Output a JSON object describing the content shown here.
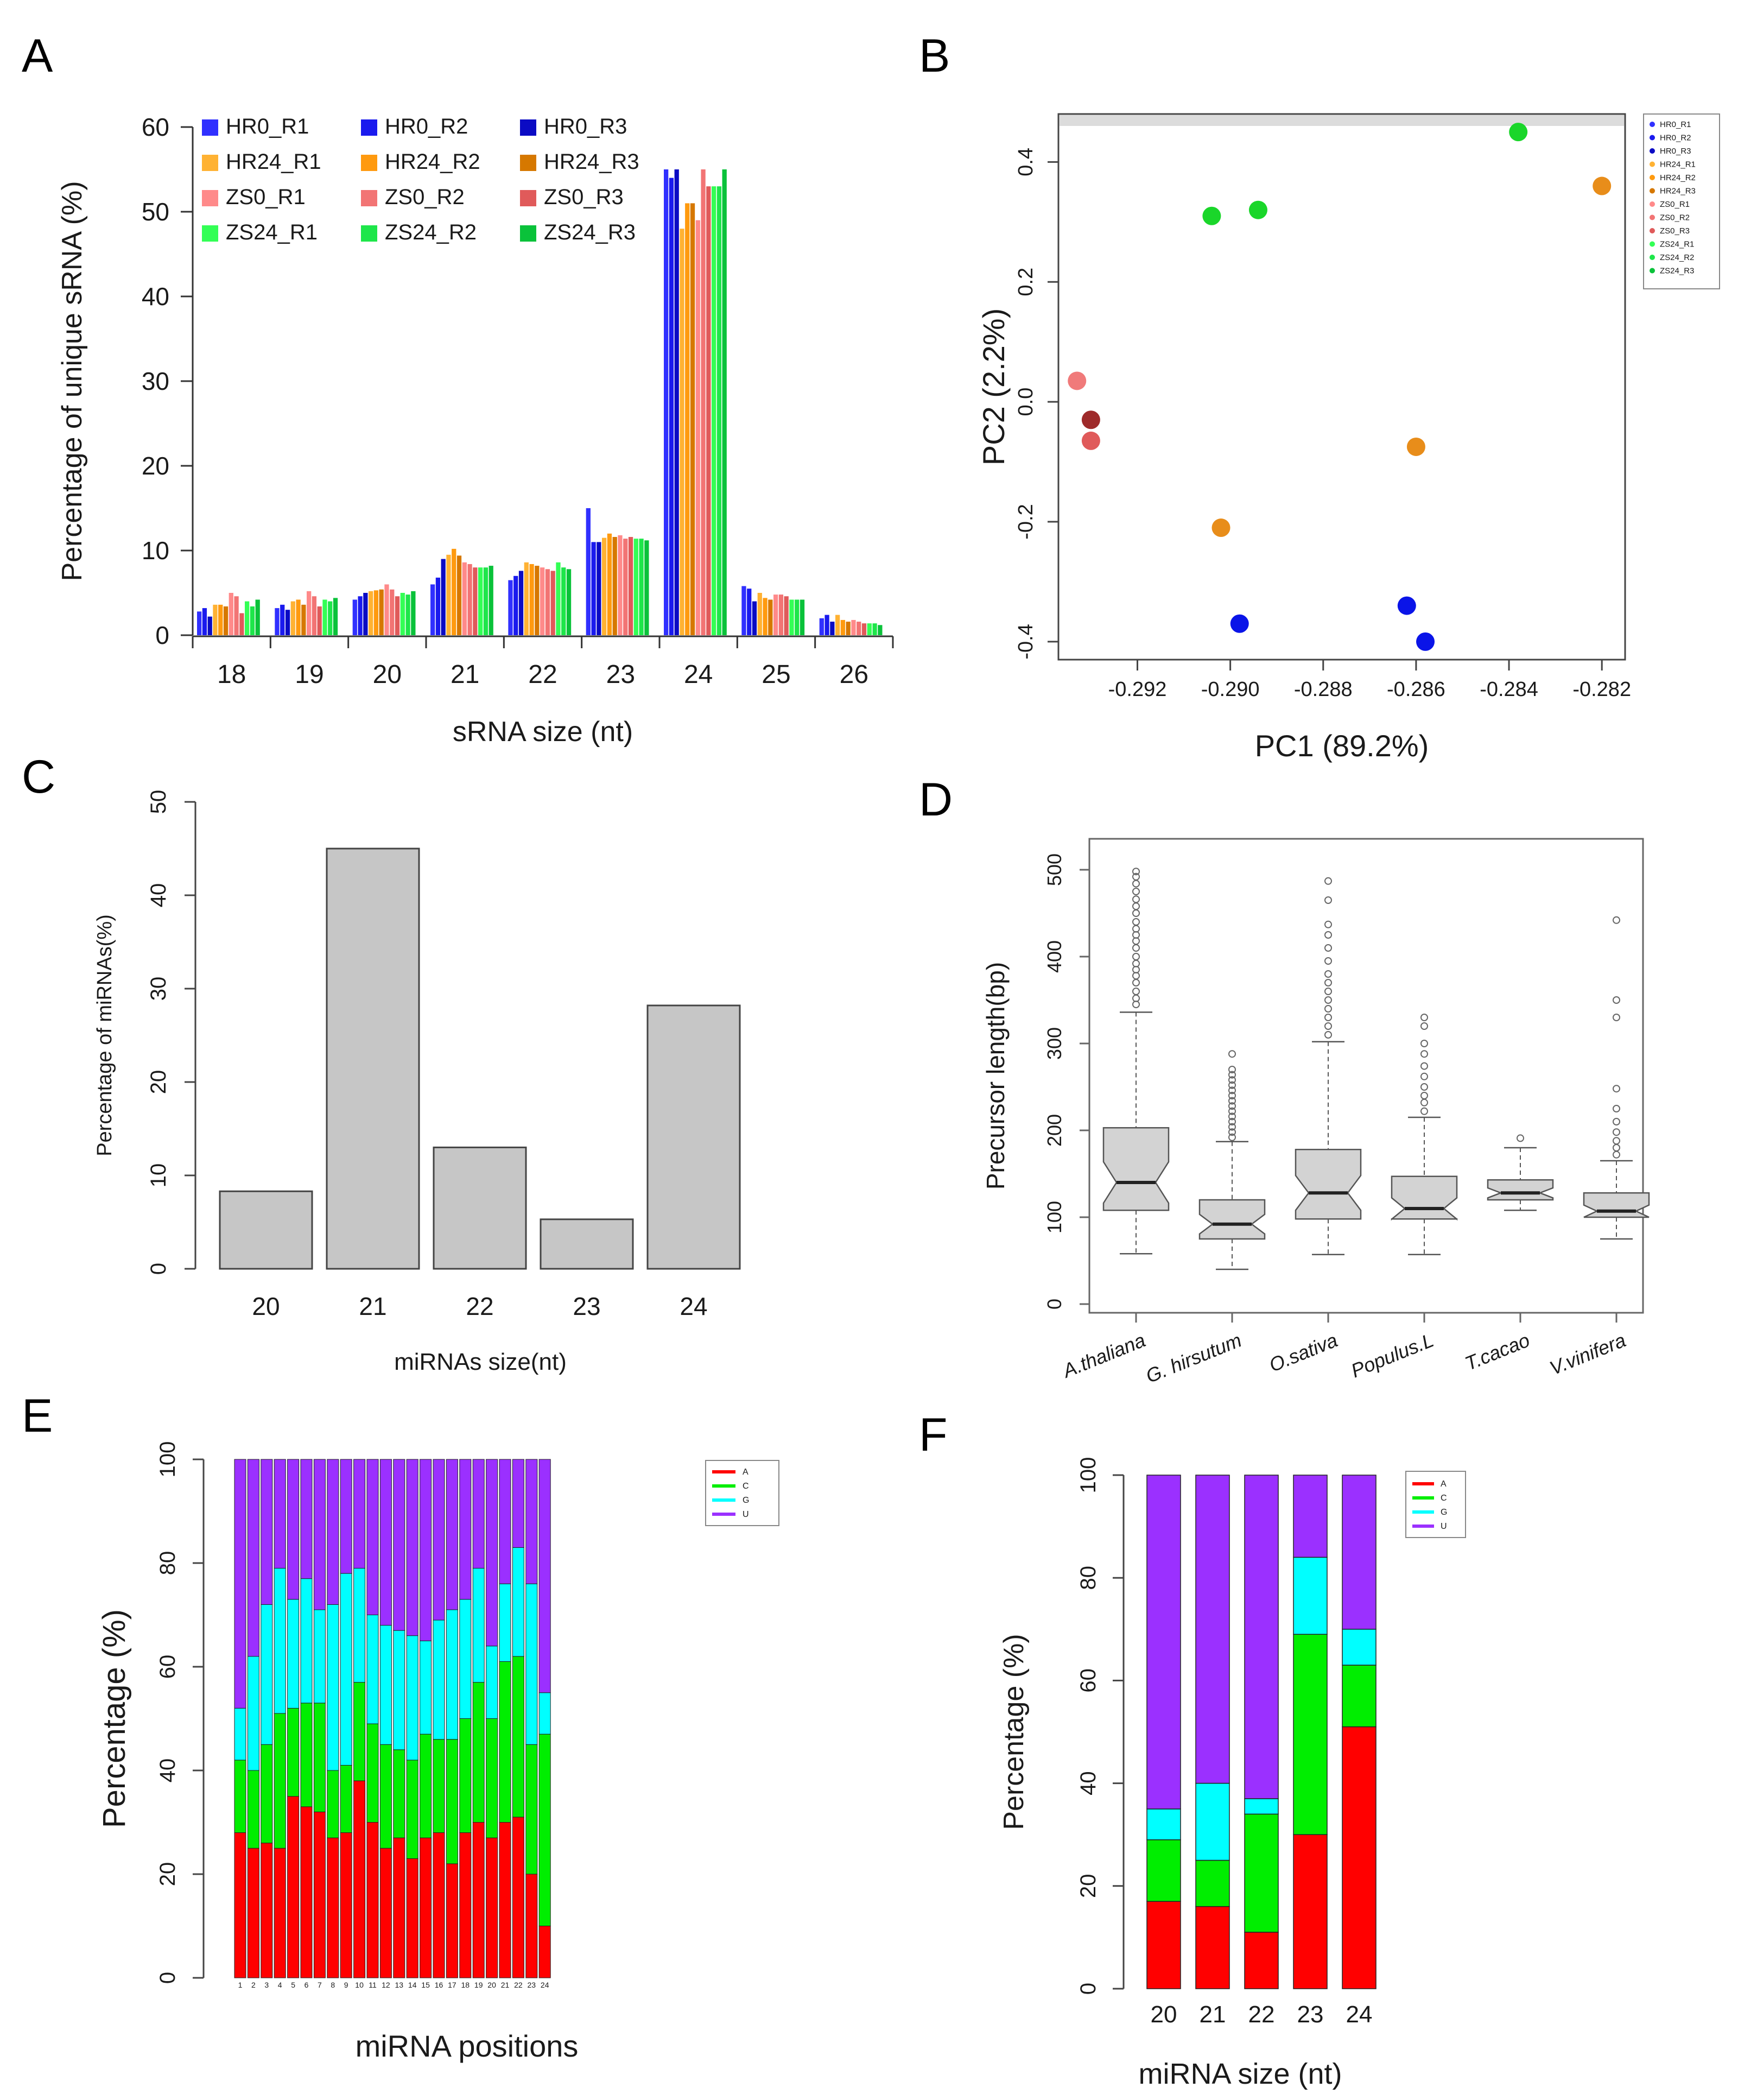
{
  "panels": {
    "A": "A",
    "B": "B",
    "C": "C",
    "D": "D",
    "E": "E",
    "F": "F"
  },
  "colors": {
    "HR0": [
      "#3030ff",
      "#1a1aee",
      "#0b0bc4"
    ],
    "HR24": [
      "#ffb233",
      "#ff9a0f",
      "#d67800"
    ],
    "ZS0": [
      "#ff8a8a",
      "#f27474",
      "#e05a5a"
    ],
    "ZS24": [
      "#33ff55",
      "#1ee64a",
      "#0ac23a"
    ],
    "gray_bar": "#c6c6c6",
    "pca": {
      "HR0": "#0a14e8",
      "HR24": "#e88d1a",
      "ZS0_light": "#f07a7a",
      "ZS0_mid": "#e05a5a",
      "ZS0_dark": "#9e2a2a",
      "ZS24": "#1ad62a"
    },
    "nt": {
      "A": "#ff0000",
      "C": "#00ee00",
      "G": "#00ffff",
      "U": "#9b30ff"
    }
  },
  "chart_data": [
    {
      "panel": "A",
      "type": "bar",
      "title": "",
      "xlabel": "sRNA size (nt)",
      "ylabel": "Percentage of unique sRNA (%)",
      "ylim": [
        0,
        60
      ],
      "yticks": [
        "0",
        "10",
        "20",
        "30",
        "40",
        "50",
        "60"
      ],
      "categories": [
        "18",
        "19",
        "20",
        "21",
        "22",
        "23",
        "24",
        "25",
        "26"
      ],
      "series": [
        {
          "name": "HR0_R1",
          "values": [
            2.8,
            3.2,
            4.2,
            6.0,
            6.5,
            15.0,
            55.0,
            5.8,
            2.0
          ]
        },
        {
          "name": "HR0_R2",
          "values": [
            3.2,
            3.6,
            4.6,
            6.8,
            7.0,
            11.0,
            54.0,
            5.5,
            2.4
          ]
        },
        {
          "name": "HR0_R3",
          "values": [
            2.2,
            3.0,
            5.0,
            9.0,
            7.6,
            11.0,
            55.0,
            4.0,
            1.6
          ]
        },
        {
          "name": "HR24_R1",
          "values": [
            3.6,
            4.0,
            5.2,
            9.5,
            8.6,
            11.5,
            48.0,
            5.0,
            2.4
          ]
        },
        {
          "name": "HR24_R2",
          "values": [
            3.6,
            4.2,
            5.3,
            10.2,
            8.4,
            12.0,
            51.0,
            4.4,
            1.8
          ]
        },
        {
          "name": "HR24_R3",
          "values": [
            3.4,
            3.6,
            5.4,
            9.4,
            8.2,
            11.6,
            51.0,
            4.2,
            1.6
          ]
        },
        {
          "name": "ZS0_R1",
          "values": [
            5.0,
            5.2,
            6.0,
            8.6,
            8.0,
            11.8,
            49.0,
            4.8,
            1.8
          ]
        },
        {
          "name": "ZS0_R2",
          "values": [
            4.6,
            4.6,
            5.4,
            8.4,
            7.8,
            11.4,
            55.0,
            4.8,
            1.6
          ]
        },
        {
          "name": "ZS0_R3",
          "values": [
            2.6,
            3.4,
            4.6,
            8.0,
            7.6,
            11.6,
            53.0,
            4.6,
            1.4
          ]
        },
        {
          "name": "ZS24_R1",
          "values": [
            4.0,
            4.2,
            5.0,
            8.0,
            8.6,
            11.4,
            53.0,
            4.2,
            1.4
          ]
        },
        {
          "name": "ZS24_R2",
          "values": [
            3.4,
            4.0,
            4.8,
            8.0,
            8.0,
            11.4,
            53.0,
            4.2,
            1.4
          ]
        },
        {
          "name": "ZS24_R3",
          "values": [
            4.2,
            4.4,
            5.2,
            8.2,
            7.8,
            11.2,
            55.0,
            4.2,
            1.2
          ]
        }
      ],
      "legend": [
        [
          "HR0_R1",
          "HR0_R2",
          "HR0_R3"
        ],
        [
          "HR24_R1",
          "HR24_R2",
          "HR24_R3"
        ],
        [
          "ZS0_R1",
          "ZS0_R2",
          "ZS0_R3"
        ],
        [
          "ZS24_R1",
          "ZS24_R2",
          "ZS24_R3"
        ]
      ]
    },
    {
      "panel": "B",
      "type": "scatter",
      "xlabel": "PC1 (89.2%)",
      "ylabel": "PC2 (2.2%)",
      "xlim": [
        -0.2937,
        -0.2815
      ],
      "ylim": [
        -0.43,
        0.48
      ],
      "xticks": [
        "-0.292",
        "-0.290",
        "-0.288",
        "-0.286",
        "-0.284",
        "-0.282"
      ],
      "xtick_values": [
        -0.292,
        -0.29,
        -0.288,
        -0.286,
        -0.284,
        -0.282
      ],
      "yticks": [
        "-0.4",
        "-0.2",
        "0.0",
        "0.2",
        "0.4"
      ],
      "ytick_values": [
        -0.4,
        -0.2,
        0.0,
        0.2,
        0.4
      ],
      "points": [
        {
          "group": "HR0",
          "x": -0.2898,
          "y": -0.37
        },
        {
          "group": "HR0",
          "x": -0.2862,
          "y": -0.34
        },
        {
          "group": "HR0",
          "x": -0.2858,
          "y": -0.4
        },
        {
          "group": "HR24",
          "x": -0.2902,
          "y": -0.21
        },
        {
          "group": "HR24",
          "x": -0.286,
          "y": -0.075
        },
        {
          "group": "HR24",
          "x": -0.282,
          "y": 0.36
        },
        {
          "group": "ZS0_light",
          "x": -0.2933,
          "y": 0.035
        },
        {
          "group": "ZS0_dark",
          "x": -0.293,
          "y": -0.03
        },
        {
          "group": "ZS0_mid",
          "x": -0.293,
          "y": -0.065
        },
        {
          "group": "ZS24",
          "x": -0.2904,
          "y": 0.31
        },
        {
          "group": "ZS24",
          "x": -0.2894,
          "y": 0.32
        },
        {
          "group": "ZS24",
          "x": -0.2838,
          "y": 0.45
        }
      ],
      "legend": [
        "HR0_R1",
        "HR0_R2",
        "HR0_R3",
        "HR24_R1",
        "HR24_R2",
        "HR24_R3",
        "ZS0_R1",
        "ZS0_R2",
        "ZS0_R3",
        "ZS24_R1",
        "ZS24_R2",
        "ZS24_R3"
      ]
    },
    {
      "panel": "C",
      "type": "bar",
      "xlabel": "miRNAs size(nt)",
      "ylabel": "Percentage of miRNAs(%)",
      "ylim": [
        0,
        50
      ],
      "yticks": [
        "0",
        "10",
        "20",
        "30",
        "40",
        "50"
      ],
      "categories": [
        "20",
        "21",
        "22",
        "23",
        "24"
      ],
      "values": [
        8.3,
        45.0,
        13.0,
        5.3,
        28.2
      ]
    },
    {
      "panel": "D",
      "type": "box",
      "ylabel": "Precursor length(bp)",
      "ylim": [
        0,
        500
      ],
      "yticks": [
        "0",
        "100",
        "200",
        "300",
        "400",
        "500"
      ],
      "categories": [
        "A.thaliana",
        "G. hirsutum",
        "O.sativa",
        "Populus.L",
        "T.cacao",
        "V.vinifera"
      ],
      "boxes": [
        {
          "min": 58,
          "q1": 108,
          "median": 140,
          "q3": 203,
          "max": 336,
          "outliers": [
            345,
            352,
            360,
            370,
            378,
            385,
            392,
            400,
            410,
            418,
            425,
            432,
            440,
            450,
            458,
            466,
            475,
            484,
            492,
            498
          ]
        },
        {
          "min": 40,
          "q1": 75,
          "median": 92,
          "q3": 120,
          "max": 187,
          "outliers": [
            192,
            198,
            204,
            210,
            216,
            222,
            228,
            234,
            240,
            246,
            252,
            258,
            264,
            270,
            288
          ]
        },
        {
          "min": 57,
          "q1": 98,
          "median": 128,
          "q3": 178,
          "max": 302,
          "outliers": [
            310,
            320,
            330,
            340,
            350,
            360,
            370,
            380,
            395,
            410,
            425,
            437,
            465,
            487
          ]
        },
        {
          "min": 57,
          "q1": 98,
          "median": 110,
          "q3": 147,
          "max": 215,
          "outliers": [
            222,
            232,
            240,
            250,
            262,
            274,
            288,
            300,
            320,
            330
          ]
        },
        {
          "min": 108,
          "q1": 120,
          "median": 128,
          "q3": 143,
          "max": 180,
          "outliers": [
            191
          ]
        },
        {
          "min": 75,
          "q1": 100,
          "median": 107,
          "q3": 128,
          "max": 165,
          "outliers": [
            172,
            180,
            188,
            198,
            210,
            225,
            248,
            330,
            350,
            442
          ]
        }
      ]
    },
    {
      "panel": "E",
      "type": "stacked_bar",
      "xlabel": "miRNA positions",
      "ylabel": "Percentage (%)",
      "ylim": [
        0,
        100
      ],
      "yticks": [
        "0",
        "20",
        "40",
        "60",
        "80",
        "100"
      ],
      "categories": [
        "1",
        "2",
        "3",
        "4",
        "5",
        "6",
        "7",
        "8",
        "9",
        "10",
        "11",
        "12",
        "13",
        "14",
        "15",
        "16",
        "17",
        "18",
        "19",
        "20",
        "21",
        "22",
        "23",
        "24"
      ],
      "legend": [
        "A",
        "C",
        "G",
        "U"
      ],
      "series": [
        {
          "name": "A",
          "values": [
            28,
            25,
            26,
            25,
            35,
            33,
            32,
            27,
            28,
            38,
            30,
            25,
            27,
            23,
            27,
            28,
            22,
            28,
            30,
            27,
            30,
            31,
            20,
            10
          ]
        },
        {
          "name": "C",
          "values": [
            14,
            15,
            19,
            26,
            17,
            20,
            21,
            13,
            13,
            19,
            19,
            20,
            17,
            19,
            20,
            18,
            24,
            22,
            27,
            23,
            31,
            31,
            25,
            37
          ]
        },
        {
          "name": "G",
          "values": [
            10,
            22,
            27,
            28,
            21,
            24,
            18,
            32,
            37,
            22,
            21,
            23,
            23,
            24,
            18,
            23,
            25,
            23,
            22,
            14,
            15,
            21,
            31,
            8
          ]
        },
        {
          "name": "U",
          "values": [
            48,
            38,
            28,
            21,
            27,
            23,
            29,
            28,
            22,
            21,
            30,
            32,
            33,
            34,
            35,
            31,
            29,
            27,
            21,
            36,
            24,
            17,
            24,
            45
          ]
        }
      ]
    },
    {
      "panel": "F",
      "type": "stacked_bar",
      "xlabel": "miRNA size (nt)",
      "ylabel": "Percentage (%)",
      "ylim": [
        0,
        100
      ],
      "yticks": [
        "0",
        "20",
        "40",
        "60",
        "80",
        "100"
      ],
      "categories": [
        "20",
        "21",
        "22",
        "23",
        "24"
      ],
      "legend": [
        "A",
        "C",
        "G",
        "U"
      ],
      "series": [
        {
          "name": "A",
          "values": [
            17,
            16,
            11,
            30,
            51
          ]
        },
        {
          "name": "C",
          "values": [
            12,
            9,
            23,
            39,
            12
          ]
        },
        {
          "name": "G",
          "values": [
            6,
            15,
            3,
            15,
            7
          ]
        },
        {
          "name": "U",
          "values": [
            65,
            60,
            63,
            16,
            30
          ]
        }
      ]
    }
  ]
}
